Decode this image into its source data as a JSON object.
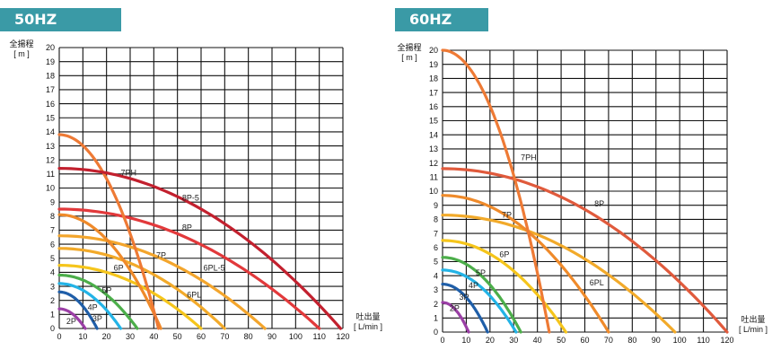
{
  "charts": [
    {
      "badge": "50HZ",
      "ylabel": [
        "全揚程",
        "[ m ]"
      ],
      "xlabel": [
        "吐出量",
        "[ L/min ]"
      ]
    },
    {
      "badge": "60HZ",
      "ylabel": [
        "全揚程",
        "[ m ]"
      ],
      "xlabel": [
        "吐出量",
        "[ L/min ]"
      ]
    }
  ],
  "chart_data": [
    {
      "type": "line",
      "title": "50HZ",
      "xlabel": "吐出量 [ L/min ]",
      "ylabel": "全揚程 [ m ]",
      "xlim": [
        0,
        120
      ],
      "ylim": [
        0,
        20
      ],
      "xticks": [
        0,
        10,
        20,
        30,
        40,
        50,
        60,
        70,
        80,
        90,
        100,
        110,
        120
      ],
      "yticks": [
        0,
        1,
        2,
        3,
        4,
        5,
        6,
        7,
        8,
        9,
        10,
        11,
        12,
        13,
        14,
        15,
        16,
        17,
        18,
        19,
        20
      ],
      "grid": true,
      "series": [
        {
          "name": "2P",
          "color": "#9b3fa6",
          "shutoff_head": 1.4,
          "max_flow": 11,
          "label_at": [
            3,
            0.5
          ]
        },
        {
          "name": "3P",
          "color": "#1f5ea8",
          "shutoff_head": 2.6,
          "max_flow": 16,
          "label_at": [
            14,
            0.7
          ]
        },
        {
          "name": "4P",
          "color": "#23b3e6",
          "shutoff_head": 3.2,
          "max_flow": 26,
          "label_at": [
            12,
            1.5
          ]
        },
        {
          "name": "5P",
          "color": "#4cae4a",
          "shutoff_head": 3.8,
          "max_flow": 33,
          "label_at": [
            18,
            2.7
          ]
        },
        {
          "name": "6P",
          "color": "#f5c51b",
          "shutoff_head": 4.5,
          "max_flow": 60,
          "label_at": [
            23,
            4.3
          ]
        },
        {
          "name": "6PL",
          "color": "#f2aa2a",
          "shutoff_head": 5.7,
          "max_flow": 70,
          "label_at": [
            54,
            2.4
          ]
        },
        {
          "name": "6PL-5",
          "color": "#f3a52c",
          "shutoff_head": 6.6,
          "max_flow": 87,
          "label_at": [
            61,
            4.3
          ]
        },
        {
          "name": "7P",
          "color": "#ef8a2a",
          "shutoff_head": 8.1,
          "max_flow": 43,
          "label_at": [
            41,
            5.2
          ]
        },
        {
          "name": "8P",
          "color": "#e2393b",
          "shutoff_head": 8.5,
          "max_flow": 110,
          "label_at": [
            52,
            7.2
          ]
        },
        {
          "name": "7PH",
          "color": "#ee7a35",
          "shutoff_head": 13.8,
          "max_flow": 42,
          "label_at": [
            26,
            11.1
          ]
        },
        {
          "name": "8P-5",
          "color": "#c2202e",
          "shutoff_head": 11.4,
          "max_flow": 119,
          "label_at": [
            52,
            9.3
          ]
        }
      ]
    },
    {
      "type": "line",
      "title": "60HZ",
      "xlabel": "吐出量 [ L/min ]",
      "ylabel": "全揚程 [ m ]",
      "xlim": [
        0,
        120
      ],
      "ylim": [
        0,
        20
      ],
      "xticks": [
        0,
        10,
        20,
        30,
        40,
        50,
        60,
        70,
        80,
        90,
        100,
        110,
        120
      ],
      "yticks": [
        0,
        1,
        2,
        3,
        4,
        5,
        6,
        7,
        8,
        9,
        10,
        11,
        12,
        13,
        14,
        15,
        16,
        17,
        18,
        19,
        20
      ],
      "grid": true,
      "series": [
        {
          "name": "2P",
          "color": "#9b3fa6",
          "shutoff_head": 2.1,
          "max_flow": 11,
          "label_at": [
            3,
            1.7
          ]
        },
        {
          "name": "3P",
          "color": "#1f5ea8",
          "shutoff_head": 3.4,
          "max_flow": 19,
          "label_at": [
            7,
            2.5
          ]
        },
        {
          "name": "4P",
          "color": "#23b3e6",
          "shutoff_head": 4.4,
          "max_flow": 31,
          "label_at": [
            11,
            3.3
          ]
        },
        {
          "name": "5P",
          "color": "#4cae4a",
          "shutoff_head": 5.3,
          "max_flow": 33,
          "label_at": [
            14,
            4.2
          ]
        },
        {
          "name": "6P",
          "color": "#f5c51b",
          "shutoff_head": 6.5,
          "max_flow": 52,
          "label_at": [
            24,
            5.5
          ]
        },
        {
          "name": "6PL",
          "color": "#f2aa2a",
          "shutoff_head": 8.3,
          "max_flow": 98,
          "label_at": [
            62,
            3.5
          ]
        },
        {
          "name": "7P",
          "color": "#ef8a2a",
          "shutoff_head": 9.7,
          "max_flow": 70,
          "label_at": [
            25,
            8.3
          ]
        },
        {
          "name": "8P",
          "color": "#e05a3c",
          "shutoff_head": 11.6,
          "max_flow": 120,
          "label_at": [
            64,
            9.1
          ]
        },
        {
          "name": "7PH",
          "color": "#ee7a35",
          "shutoff_head": 20,
          "max_flow": 45,
          "label_at": [
            33,
            12.4
          ]
        }
      ]
    }
  ]
}
